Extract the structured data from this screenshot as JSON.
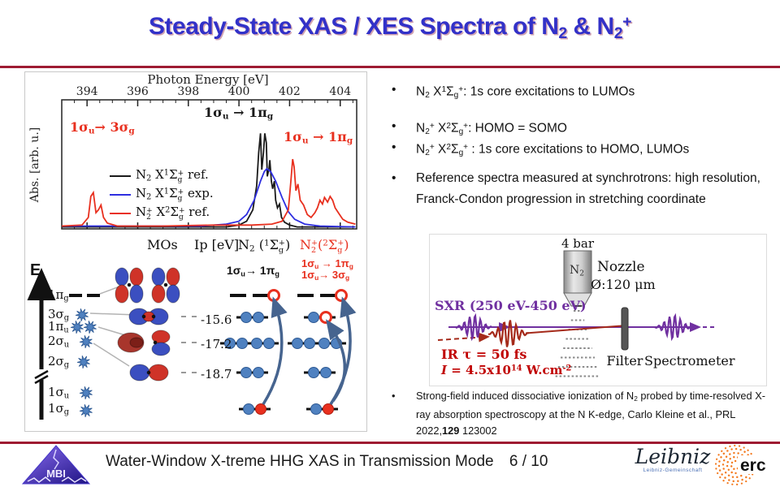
{
  "colors": {
    "accent_rule": "#9e1b32",
    "title_blue": "#3231c8",
    "fig_red": "#e8301f",
    "fig_blue": "#2e2ee0",
    "fig_black": "#1a1a1a",
    "purple": "#7030a0",
    "ir_red": "#b22222",
    "steel_arrow": "#46648f",
    "electron_blue": "#4f81c0",
    "erc_orange": "#f47b20"
  },
  "title": {
    "segments": [
      {
        "t": "Steady-State XAS / XES Spectra of N"
      },
      {
        "t": "2",
        "s": "sub"
      },
      {
        "t": " & N"
      },
      {
        "t": "2",
        "s": "sub"
      },
      {
        "t": "+",
        "s": "sup"
      }
    ]
  },
  "chart_data": {
    "type": "line",
    "title": "",
    "xlabel": "Photon Energy [eV]",
    "ylabel": "Abs. [arb. u.]",
    "xticks": [
      394,
      396,
      398,
      400,
      402,
      404
    ],
    "xlim": [
      393.0,
      404.65
    ],
    "ylim": [
      0,
      1.3
    ],
    "grid": false,
    "legend_position": "center-left inside plot",
    "series": [
      {
        "name": "N2 X1Sg+ ref.",
        "color": "#1a1a1a",
        "points": [
          [
            393.0,
            0.02
          ],
          [
            399.5,
            0.02
          ],
          [
            400.0,
            0.04
          ],
          [
            400.3,
            0.08
          ],
          [
            400.55,
            0.2
          ],
          [
            400.7,
            0.45
          ],
          [
            400.78,
            0.8
          ],
          [
            400.85,
            1.0
          ],
          [
            400.9,
            0.62
          ],
          [
            400.97,
            0.8
          ],
          [
            401.02,
            1.0
          ],
          [
            401.08,
            0.9
          ],
          [
            401.12,
            0.55
          ],
          [
            401.18,
            0.62
          ],
          [
            401.22,
            0.72
          ],
          [
            401.28,
            0.5
          ],
          [
            401.33,
            0.42
          ],
          [
            401.4,
            0.5
          ],
          [
            401.45,
            0.3
          ],
          [
            401.52,
            0.22
          ],
          [
            401.6,
            0.26
          ],
          [
            401.68,
            0.12
          ],
          [
            401.8,
            0.07
          ],
          [
            402.0,
            0.04
          ],
          [
            402.3,
            0.02
          ],
          [
            404.6,
            0.02
          ]
        ]
      },
      {
        "name": "N2 X1Sg+ exp.",
        "color": "#2e2ee0",
        "points": [
          [
            393.0,
            0.03
          ],
          [
            398.5,
            0.03
          ],
          [
            399.5,
            0.05
          ],
          [
            400.0,
            0.08
          ],
          [
            400.3,
            0.15
          ],
          [
            400.6,
            0.3
          ],
          [
            400.85,
            0.5
          ],
          [
            401.0,
            0.6
          ],
          [
            401.1,
            0.63
          ],
          [
            401.25,
            0.6
          ],
          [
            401.45,
            0.5
          ],
          [
            401.7,
            0.33
          ],
          [
            401.95,
            0.18
          ],
          [
            402.2,
            0.1
          ],
          [
            402.6,
            0.05
          ],
          [
            403.2,
            0.03
          ],
          [
            404.6,
            0.02
          ]
        ]
      },
      {
        "name": "N2+ X2Sg+ ref.",
        "color": "#e8301f",
        "points": [
          [
            393.0,
            0.03
          ],
          [
            393.8,
            0.04
          ],
          [
            394.05,
            0.12
          ],
          [
            394.15,
            0.34
          ],
          [
            394.25,
            0.38
          ],
          [
            394.35,
            0.17
          ],
          [
            394.45,
            0.2
          ],
          [
            394.55,
            0.25
          ],
          [
            394.65,
            0.12
          ],
          [
            394.8,
            0.06
          ],
          [
            395.2,
            0.03
          ],
          [
            397.0,
            0.03
          ],
          [
            399.0,
            0.04
          ],
          [
            400.5,
            0.04
          ],
          [
            401.3,
            0.05
          ],
          [
            401.7,
            0.08
          ],
          [
            401.95,
            0.2
          ],
          [
            402.05,
            0.5
          ],
          [
            402.12,
            0.73
          ],
          [
            402.18,
            0.65
          ],
          [
            402.25,
            0.4
          ],
          [
            402.33,
            0.47
          ],
          [
            402.42,
            0.3
          ],
          [
            402.55,
            0.25
          ],
          [
            402.7,
            0.15
          ],
          [
            402.85,
            0.12
          ],
          [
            403.0,
            0.17
          ],
          [
            403.1,
            0.22
          ],
          [
            403.2,
            0.3
          ],
          [
            403.3,
            0.26
          ],
          [
            403.38,
            0.33
          ],
          [
            403.5,
            0.28
          ],
          [
            403.6,
            0.34
          ],
          [
            403.7,
            0.3
          ],
          [
            403.8,
            0.22
          ],
          [
            403.95,
            0.16
          ],
          [
            404.1,
            0.1
          ],
          [
            404.3,
            0.07
          ],
          [
            404.6,
            0.05
          ]
        ]
      }
    ],
    "legend": [
      {
        "color": "#1a1a1a",
        "segments": [
          {
            "t": "N"
          },
          {
            "t": "2",
            "s": "sub"
          },
          {
            "t": " X"
          },
          {
            "t": "1",
            "s": "sup"
          },
          {
            "t": "Σ"
          },
          {
            "sup": "+",
            "sub": "g"
          },
          {
            "t": " ref."
          }
        ]
      },
      {
        "color": "#2e2ee0",
        "segments": [
          {
            "t": "N"
          },
          {
            "t": "2",
            "s": "sub"
          },
          {
            "t": " X"
          },
          {
            "t": "1",
            "s": "sup"
          },
          {
            "t": "Σ"
          },
          {
            "sup": "+",
            "sub": "g"
          },
          {
            "t": " exp."
          }
        ]
      },
      {
        "color": "#e8301f",
        "segments": [
          {
            "t": "N"
          },
          {
            "sup": "+",
            "sub": "2"
          },
          {
            "t": " X"
          },
          {
            "t": "2",
            "s": "sup"
          },
          {
            "t": "Σ"
          },
          {
            "sup": "+",
            "sub": "g"
          },
          {
            "t": " ref."
          }
        ]
      }
    ],
    "annotations": [
      {
        "id": "a-red-left",
        "color": "#e8301f",
        "segments": [
          {
            "t": "1σ"
          },
          {
            "t": "u",
            "s": "sub"
          },
          {
            "t": "→ 3σ"
          },
          {
            "t": "g",
            "s": "sub"
          }
        ]
      },
      {
        "id": "a-black-center",
        "color": "#1a1a1a",
        "segments": [
          {
            "t": "1σ"
          },
          {
            "t": "u",
            "s": "sub"
          },
          {
            "t": " → 1π"
          },
          {
            "t": "g",
            "s": "sub"
          }
        ]
      },
      {
        "id": "a-red-right",
        "color": "#e8301f",
        "segments": [
          {
            "t": "1σ"
          },
          {
            "t": "u",
            "s": "sub"
          },
          {
            "t": " → 1π"
          },
          {
            "t": "g",
            "s": "sub"
          }
        ]
      }
    ]
  },
  "mo": {
    "e_label": "E",
    "headers": {
      "mos": "MOs",
      "ip": "Ip [eV]",
      "n2": [
        {
          "t": "N"
        },
        {
          "t": "2",
          "s": "sub"
        },
        {
          "t": " ("
        },
        {
          "t": "1",
          "s": "sup"
        },
        {
          "t": "Σ"
        },
        {
          "sup": "+",
          "sub": "g"
        },
        {
          "t": ")"
        }
      ],
      "n2plus": [
        {
          "t": "N"
        },
        {
          "sup": "+",
          "sub": "2"
        },
        {
          "t": "("
        },
        {
          "t": "2",
          "s": "sup"
        },
        {
          "t": "Σ"
        },
        {
          "sup": "+",
          "sub": "g"
        },
        {
          "t": ")"
        }
      ]
    },
    "levels": [
      [
        {
          "t": "1π"
        },
        {
          "t": "g",
          "s": "sub"
        }
      ],
      [
        {
          "t": "3σ"
        },
        {
          "t": "g",
          "s": "sub"
        }
      ],
      [
        {
          "t": "1π"
        },
        {
          "t": "u",
          "s": "sub"
        }
      ],
      [
        {
          "t": "2σ"
        },
        {
          "t": "u",
          "s": "sub"
        }
      ],
      [
        {
          "t": "2σ"
        },
        {
          "t": "g",
          "s": "sub"
        }
      ],
      [
        {
          "t": "1σ"
        },
        {
          "t": "u",
          "s": "sub"
        }
      ],
      [
        {
          "t": "1σ"
        },
        {
          "t": "g",
          "s": "sub"
        }
      ]
    ],
    "ip_values": [
      "-15.6",
      "-17.2",
      "-18.7"
    ],
    "annotations": {
      "n2": [
        {
          "t": "1σ"
        },
        {
          "t": "u",
          "s": "sub"
        },
        {
          "t": "→ 1π"
        },
        {
          "t": "g",
          "s": "sub"
        }
      ],
      "n2p_line1": [
        {
          "t": "1σ"
        },
        {
          "t": "u",
          "s": "sub"
        },
        {
          "t": " → 1π"
        },
        {
          "t": "g",
          "s": "sub"
        }
      ],
      "n2p_line2": [
        {
          "t": "1σ"
        },
        {
          "t": "u",
          "s": "sub"
        },
        {
          "t": "→ 3σ"
        },
        {
          "t": "g",
          "s": "sub"
        }
      ]
    }
  },
  "bullets": [
    {
      "segments": [
        {
          "t": "N"
        },
        {
          "t": "2",
          "s": "sub"
        },
        {
          "t": " X"
        },
        {
          "t": "1",
          "s": "sup"
        },
        {
          "t": "Σ"
        },
        {
          "t": "g",
          "s": "sub"
        },
        {
          "t": "+",
          "s": "sup"
        },
        {
          "t": ": 1s core excitations to LUMOs"
        }
      ]
    },
    {
      "segments": [
        {
          "t": "N"
        },
        {
          "t": "2",
          "s": "sub"
        },
        {
          "t": "+",
          "s": "sup"
        },
        {
          "t": " X"
        },
        {
          "t": "2",
          "s": "sup"
        },
        {
          "t": "Σ"
        },
        {
          "t": "g",
          "s": "sub"
        },
        {
          "t": "+",
          "s": "sup"
        },
        {
          "t": ": HOMO = SOMO"
        }
      ]
    },
    {
      "segments": [
        {
          "t": "N"
        },
        {
          "t": "2",
          "s": "sub"
        },
        {
          "t": "+",
          "s": "sup"
        },
        {
          "t": " X"
        },
        {
          "t": "2",
          "s": "sup"
        },
        {
          "t": "Σ"
        },
        {
          "t": "g",
          "s": "sub"
        },
        {
          "t": "+",
          "s": "sup"
        },
        {
          "t": " : 1s core excitations to HOMO, LUMOs"
        }
      ]
    },
    {
      "segments": [
        {
          "t": "Reference spectra measured at synchrotrons: high resolution, Franck-Condon progression in stretching coordinate"
        }
      ]
    }
  ],
  "setup": {
    "pressure": "4 bar",
    "gas": [
      {
        "t": "N"
      },
      {
        "t": "2",
        "s": "sub"
      }
    ],
    "nozzle_label": "Nozzle",
    "diameter": "Ø:120 μm",
    "sxr_label": "SXR (250 eV-450 eV)",
    "ir_label": [
      {
        "t": "IR τ = 50 fs"
      }
    ],
    "intensity": [
      {
        "t": "I",
        "i": true
      },
      {
        "t": " = 4.5x10"
      },
      {
        "t": "14",
        "s": "sup"
      },
      {
        "t": " W.cm"
      },
      {
        "t": "-2",
        "s": "sup"
      }
    ],
    "filter_label": "Filter",
    "spectrometer_label": "Spectrometer"
  },
  "reference": {
    "segments": [
      {
        "t": "Strong-field induced dissociative ionization of N"
      },
      {
        "t": "2",
        "s": "sub"
      },
      {
        "t": " probed by time-resolved X-ray absorption spectroscopy at the N K-edge, Carlo Kleine et al., PRL 2022,"
      },
      {
        "t": "129",
        "b": true
      },
      {
        "t": " 123002"
      }
    ]
  },
  "footer": {
    "text": "Water-Window X-treme HHG XAS in Transmission Mode",
    "page": "6 / 10",
    "mbi": "MBI",
    "leibniz": "Leibniz",
    "leibniz_caption": "Leibniz-Gemeinschaft",
    "erc": "erc"
  }
}
